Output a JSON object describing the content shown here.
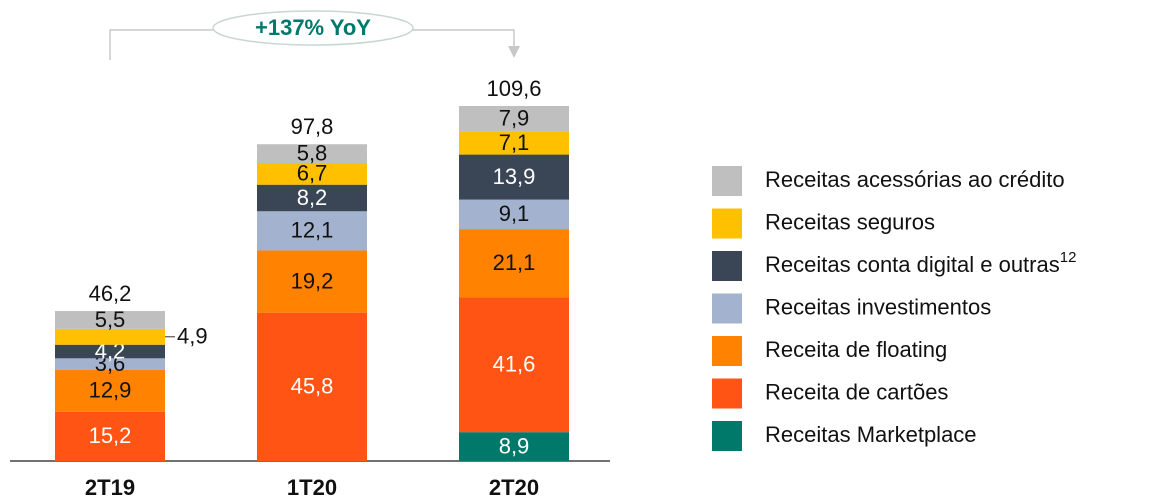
{
  "chart_data": {
    "type": "stacked_bar",
    "annotation": "+137% YoY",
    "categories": [
      "2T19",
      "1T20",
      "2T20"
    ],
    "totals": [
      46.2,
      97.8,
      109.6
    ],
    "series": [
      {
        "name": "Receitas Marketplace",
        "color": "#00796b",
        "values": [
          null,
          null,
          8.9
        ],
        "value_labels": [
          null,
          null,
          "8,9"
        ]
      },
      {
        "name": "Receita de cartões",
        "color": "#ff5414",
        "values": [
          15.2,
          45.8,
          41.6
        ],
        "value_labels": [
          "15,2",
          "45,8",
          "41,6"
        ]
      },
      {
        "name": "Receita de floating",
        "color": "#ff8200",
        "values": [
          12.9,
          19.2,
          21.1
        ],
        "value_labels": [
          "12,9",
          "19,2",
          "21,1"
        ]
      },
      {
        "name": "Receitas investimentos",
        "color": "#a3b3cf",
        "values": [
          3.6,
          12.1,
          9.1
        ],
        "value_labels": [
          "3,6",
          "12,1",
          "9,1"
        ]
      },
      {
        "name": "Receitas conta digital e outras",
        "footnote": "12",
        "color": "#3a4556",
        "values": [
          4.2,
          8.2,
          13.9
        ],
        "value_labels": [
          "4,2",
          "8,2",
          "13,9"
        ]
      },
      {
        "name": "Receitas seguros",
        "color": "#ffc000",
        "values": [
          4.9,
          6.7,
          7.1
        ],
        "value_labels": [
          "4,9",
          "6,7",
          "7,1"
        ]
      },
      {
        "name": "Receitas acessórias ao crédito",
        "color": "#bfbfbf",
        "values": [
          5.5,
          5.8,
          7.9
        ],
        "value_labels": [
          "5,5",
          "5,8",
          "7,9"
        ]
      }
    ],
    "total_labels": [
      "46,2",
      "97,8",
      "109,6"
    ]
  }
}
